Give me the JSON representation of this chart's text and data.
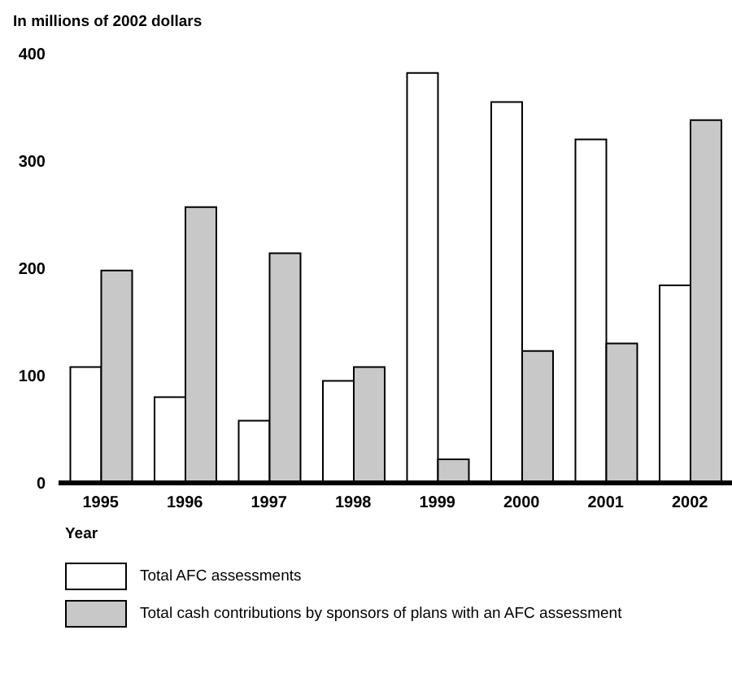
{
  "chart_data": {
    "type": "bar",
    "ylabel": "In millions of 2002 dollars",
    "xlabel": "Year",
    "categories": [
      "1995",
      "1996",
      "1997",
      "1998",
      "1999",
      "2000",
      "2001",
      "2002"
    ],
    "series": [
      {
        "name": "Total AFC assessments",
        "color": "#ffffff",
        "values": [
          108,
          80,
          58,
          95,
          382,
          355,
          320,
          184
        ]
      },
      {
        "name": "Total cash contributions by sponsors of plans with an AFC assessment",
        "color": "#c8c8c8",
        "values": [
          198,
          257,
          214,
          108,
          22,
          123,
          130,
          338
        ]
      }
    ],
    "ylim": [
      0,
      400
    ],
    "yticks": [
      0,
      100,
      200,
      300,
      400
    ],
    "grid": false,
    "legend": "bottom left"
  }
}
